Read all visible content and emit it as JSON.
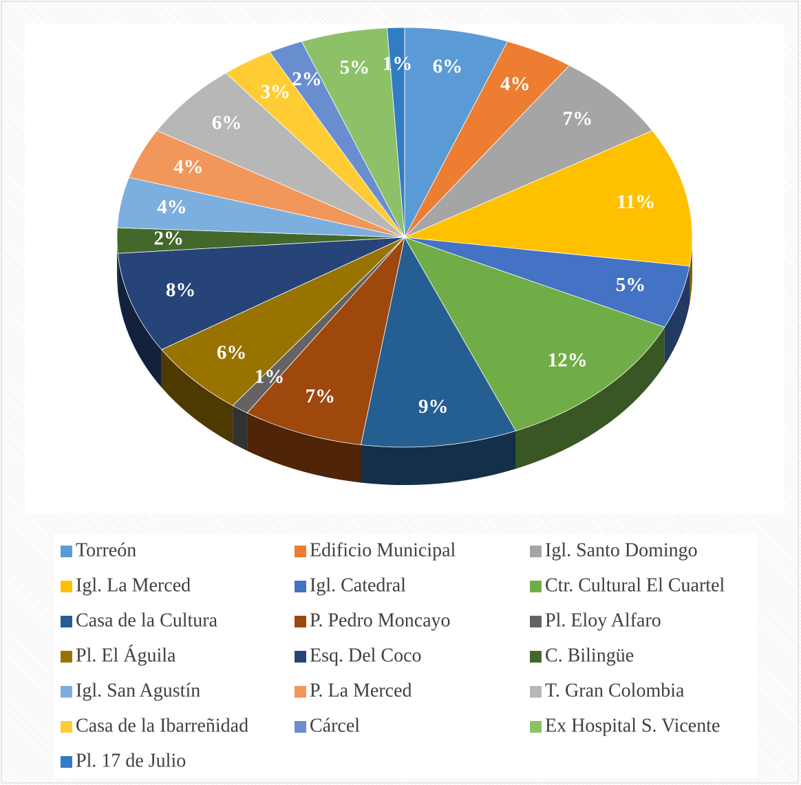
{
  "chart_data": {
    "type": "pie3d",
    "categories": [
      "Torreón",
      "Edificio Municipal",
      "Igl. Santo Domingo",
      "Igl. La Merced",
      "Igl. Catedral",
      "Ctr. Cultural El Cuartel",
      "Casa de la Cultura",
      "P. Pedro Moncayo",
      "Pl. Eloy Alfaro",
      "Pl. El Águila",
      "Esq. Del Coco",
      "C. Bilingüe",
      "Igl. San Agustín",
      "P. La Merced",
      "T. Gran Colombia",
      "Casa de la Ibarreñidad",
      "Cárcel",
      "Ex Hospital S. Vicente",
      "Pl. 17 de Julio"
    ],
    "values": [
      6,
      4,
      7,
      11,
      5,
      12,
      9,
      7,
      1,
      6,
      8,
      2,
      4,
      4,
      6,
      3,
      2,
      5,
      1
    ],
    "value_labels": [
      "6%",
      "4%",
      "7%",
      "11%",
      "5%",
      "12%",
      "9%",
      "7%",
      "1%",
      "6%",
      "8%",
      "2%",
      "4%",
      "4%",
      "6%",
      "3%",
      "2%",
      "5%",
      "1%"
    ],
    "colors": [
      "#5B9BD5",
      "#ED7D31",
      "#A5A5A5",
      "#FFC000",
      "#4472C4",
      "#70AD47",
      "#255E91",
      "#9E480E",
      "#636363",
      "#997300",
      "#264478",
      "#43682B",
      "#7CAFDD",
      "#F1975A",
      "#B7B7B7",
      "#FFCD33",
      "#698ED0",
      "#8CC168",
      "#327DC2"
    ],
    "legend": "bottom"
  }
}
